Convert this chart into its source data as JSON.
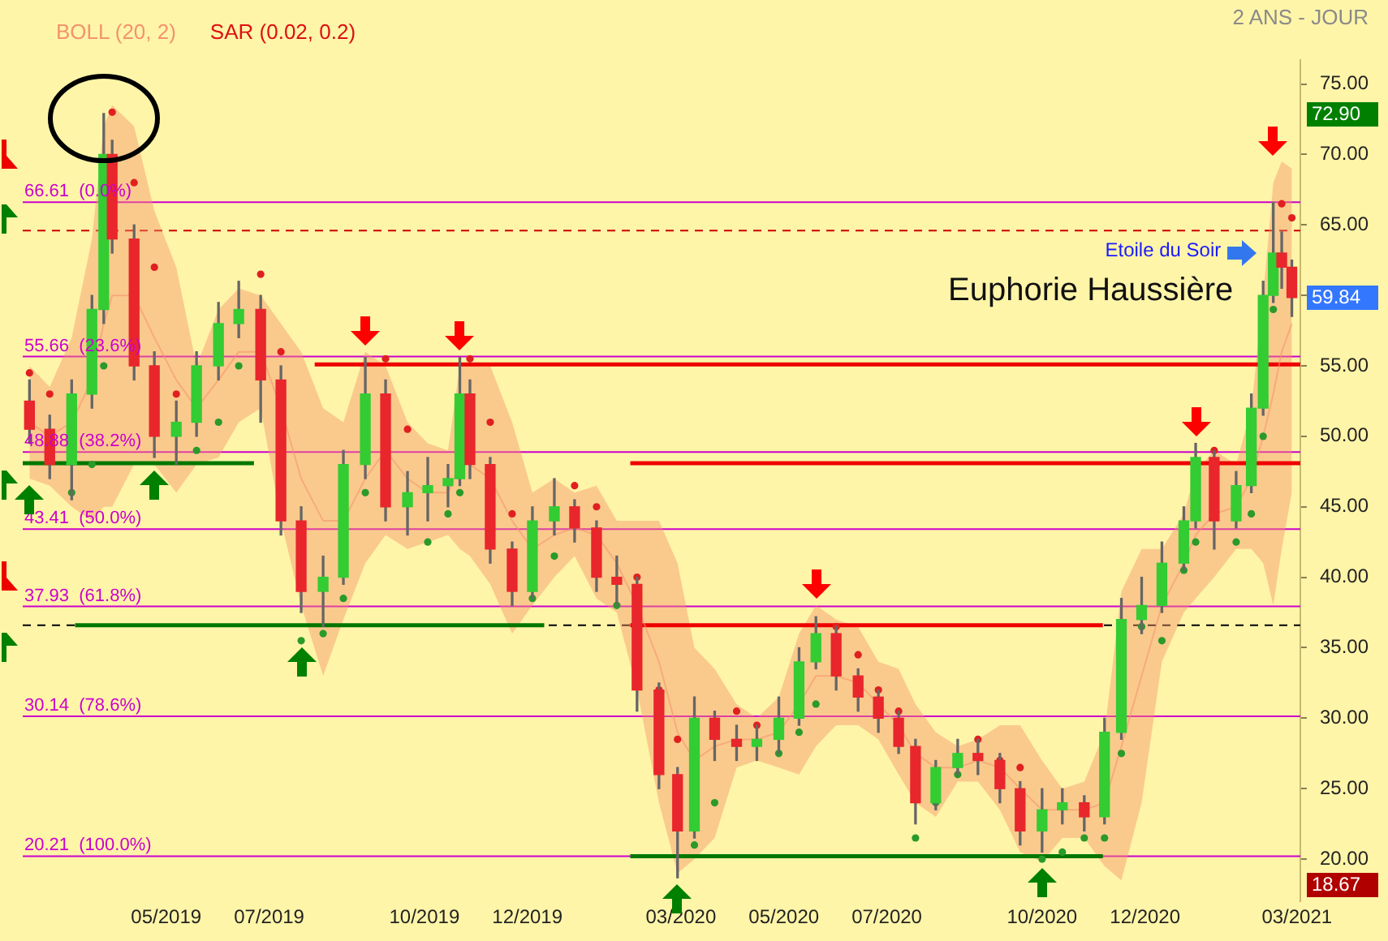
{
  "chart_data": {
    "type": "candlestick",
    "subtitle": "2 ANS - JOUR",
    "legend": "top left",
    "x": [
      "2019-02-09",
      "2019-02-21",
      "2019-03-06",
      "2019-03-18",
      "2019-03-25",
      "2019-03-30",
      "2019-04-12",
      "2019-04-24",
      "2019-05-07",
      "2019-05-19",
      "2019-06-01",
      "2019-06-13",
      "2019-06-26",
      "2019-07-08",
      "2019-07-20",
      "2019-08-02",
      "2019-08-14",
      "2019-08-27",
      "2019-09-08",
      "2019-09-21",
      "2019-10-03",
      "2019-10-15",
      "2019-10-22",
      "2019-10-28",
      "2019-11-09",
      "2019-11-22",
      "2019-12-04",
      "2019-12-17",
      "2019-12-29",
      "2020-01-11",
      "2020-01-23",
      "2020-02-04",
      "2020-02-17",
      "2020-02-28",
      "2020-03-09",
      "2020-03-21",
      "2020-04-03",
      "2020-04-15",
      "2020-04-28",
      "2020-05-10",
      "2020-05-20",
      "2020-06-01",
      "2020-06-14",
      "2020-06-26",
      "2020-07-08",
      "2020-07-18",
      "2020-07-30",
      "2020-08-12",
      "2020-08-24",
      "2020-09-06",
      "2020-09-18",
      "2020-10-01",
      "2020-10-13",
      "2020-10-26",
      "2020-11-07",
      "2020-11-17",
      "2020-11-29",
      "2020-12-11",
      "2020-12-24",
      "2020-12-31",
      "2021-01-11",
      "2021-01-24",
      "2021-02-02",
      "2021-02-09",
      "2021-02-15",
      "2021-02-20",
      "2021-02-26"
    ],
    "ohlc": [
      [
        52.5,
        54,
        49.5,
        50.5
      ],
      [
        50.5,
        51.5,
        47,
        48
      ],
      [
        48,
        54,
        45.5,
        53
      ],
      [
        53,
        60,
        52,
        59
      ],
      [
        59,
        72.9,
        58,
        70
      ],
      [
        70,
        71,
        63,
        64
      ],
      [
        64,
        65,
        54,
        55
      ],
      [
        55,
        56,
        48.5,
        50
      ],
      [
        50,
        52.5,
        48,
        51
      ],
      [
        51,
        56,
        50,
        55
      ],
      [
        55,
        59.5,
        54,
        58
      ],
      [
        58,
        61,
        57,
        59
      ],
      [
        59,
        60,
        51,
        54
      ],
      [
        54,
        55,
        43,
        44
      ],
      [
        44,
        45,
        37.5,
        39
      ],
      [
        39,
        41.5,
        36.5,
        40
      ],
      [
        40,
        49,
        39.5,
        48
      ],
      [
        48,
        55.6,
        47,
        53
      ],
      [
        53,
        54,
        44,
        45
      ],
      [
        45,
        47.5,
        43,
        46
      ],
      [
        46,
        48.5,
        44,
        46.5
      ],
      [
        46.5,
        48,
        45,
        47
      ],
      [
        47,
        55.6,
        46.5,
        53
      ],
      [
        53,
        54,
        47,
        48
      ],
      [
        48,
        48.5,
        41,
        42
      ],
      [
        42,
        42.5,
        38,
        39
      ],
      [
        39,
        45,
        38.5,
        44
      ],
      [
        44,
        47,
        43,
        45
      ],
      [
        45,
        45.5,
        42.5,
        43.5
      ],
      [
        43.5,
        44,
        39,
        40
      ],
      [
        40,
        41.5,
        38,
        39.5
      ],
      [
        39.5,
        40,
        30.5,
        32
      ],
      [
        32,
        32.5,
        25,
        26
      ],
      [
        26,
        26.5,
        18.67,
        22
      ],
      [
        22,
        31.5,
        21.5,
        30
      ],
      [
        30,
        30.5,
        27,
        28.5
      ],
      [
        28.5,
        29.5,
        27,
        28
      ],
      [
        28,
        29.5,
        27,
        28.5
      ],
      [
        28.5,
        31.5,
        27.5,
        30
      ],
      [
        30,
        35,
        29.5,
        34
      ],
      [
        34,
        37.2,
        33.5,
        36
      ],
      [
        36,
        36.5,
        32,
        33
      ],
      [
        33,
        33.5,
        30.5,
        31.5
      ],
      [
        31.5,
        32,
        29,
        30
      ],
      [
        30,
        30.5,
        27.5,
        28
      ],
      [
        28,
        28.5,
        22.5,
        24
      ],
      [
        24,
        27,
        23.5,
        26.5
      ],
      [
        26.5,
        28.5,
        26,
        27.5
      ],
      [
        27.5,
        28.5,
        26,
        27
      ],
      [
        27,
        27.5,
        24,
        25
      ],
      [
        25,
        25.5,
        21,
        22
      ],
      [
        22,
        25,
        20.5,
        23.5
      ],
      [
        23.5,
        25,
        22.5,
        24
      ],
      [
        24,
        24.5,
        22,
        23
      ],
      [
        23,
        30,
        22.5,
        29
      ],
      [
        29,
        38.5,
        28.5,
        37
      ],
      [
        37,
        40,
        36,
        38
      ],
      [
        38,
        42.5,
        37.5,
        41
      ],
      [
        41,
        45,
        40.5,
        44
      ],
      [
        44,
        49.5,
        43.5,
        48.5
      ],
      [
        48.5,
        49,
        42,
        44
      ],
      [
        44,
        47.5,
        43.5,
        46.5
      ],
      [
        46.5,
        53,
        46,
        52
      ],
      [
        52,
        61,
        51.5,
        60
      ],
      [
        60,
        66.61,
        59.5,
        63
      ],
      [
        63,
        64.5,
        60.5,
        62
      ],
      [
        62,
        62.5,
        58.5,
        59.84
      ]
    ],
    "series": [
      {
        "name": "BOLL (20, 2)",
        "type": "line",
        "color": "#f4936c",
        "values": [
          51,
          50,
          51,
          54,
          58,
          60,
          60,
          57,
          54,
          52,
          54,
          56,
          56,
          52,
          47,
          44,
          44,
          47,
          49,
          47,
          46,
          46,
          48,
          48,
          47,
          44,
          42,
          43,
          43.5,
          43,
          41,
          38,
          34,
          29,
          27,
          28,
          28.5,
          28.5,
          29,
          31,
          33,
          33,
          32.5,
          31,
          29.5,
          27.5,
          26.5,
          26.5,
          27,
          26.5,
          25,
          23.5,
          23.5,
          23.5,
          24,
          28,
          33,
          38,
          41,
          43,
          44.5,
          45,
          47,
          50,
          53,
          56,
          58
        ],
        "upper": [
          55,
          53.5,
          57,
          64,
          72,
          73.5,
          72,
          66,
          62,
          55,
          59,
          60.5,
          60,
          58,
          56,
          52,
          51,
          56,
          55,
          51,
          49.5,
          49,
          55,
          55,
          55,
          51,
          46,
          47,
          46,
          46.5,
          44,
          44,
          44,
          41,
          35,
          33.5,
          31,
          30,
          31.5,
          36,
          38,
          37,
          36.5,
          34,
          33.5,
          31,
          29,
          28,
          28.5,
          29.5,
          29.5,
          27,
          25,
          25.5,
          29,
          39,
          42,
          42,
          44.5,
          47.5,
          49,
          48,
          52,
          60,
          68,
          69.5,
          69
        ],
        "lower": [
          47,
          46.5,
          45,
          44,
          45,
          45,
          48,
          48,
          46,
          48,
          48.5,
          51,
          52,
          44,
          38,
          33,
          37,
          41,
          43,
          42,
          42.5,
          43,
          42,
          41.5,
          39.5,
          36,
          38,
          40,
          41.5,
          38.5,
          37.5,
          32,
          24,
          19,
          20,
          21.5,
          26.5,
          27,
          26.5,
          26,
          28,
          29.5,
          29.5,
          28.5,
          26,
          24,
          23,
          25.5,
          25.5,
          23.5,
          20.5,
          19.8,
          21.5,
          21.5,
          19.5,
          18.5,
          24,
          34,
          37.5,
          38.5,
          40,
          42,
          42,
          41,
          38,
          42,
          46
        ]
      },
      {
        "name": "SAR (0.02, 0.2)",
        "type": "scatter",
        "color": "#dd1111",
        "values": [
          54.5,
          53,
          46,
          48,
          55,
          73,
          68,
          62,
          53,
          49,
          51,
          55,
          61.5,
          56,
          35.5,
          36,
          38.5,
          46,
          55.5,
          50.5,
          42.5,
          44.5,
          46,
          55.5,
          51,
          44.5,
          38.5,
          41.5,
          46.5,
          45,
          38,
          40,
          32,
          28.5,
          21,
          24,
          30.5,
          29.5,
          27.5,
          29,
          31,
          36.5,
          34.5,
          32,
          30.5,
          21.5,
          24,
          26,
          28.5,
          27,
          26.5,
          20,
          20.5,
          21.5,
          21.5,
          27.5,
          36.5,
          35.5,
          40.5,
          42.5,
          49,
          42.5,
          44.5,
          50,
          59,
          66.5,
          65.5
        ],
        "colors": [
          "#e02020",
          "#e02020",
          "#2a9a2a",
          "#2a9a2a",
          "#2a9a2a",
          "#e02020",
          "#e02020",
          "#e02020",
          "#e02020",
          "#2a9a2a",
          "#2a9a2a",
          "#2a9a2a",
          "#e02020",
          "#e02020",
          "#2a9a2a",
          "#2a9a2a",
          "#2a9a2a",
          "#2a9a2a",
          "#e02020",
          "#e02020",
          "#2a9a2a",
          "#2a9a2a",
          "#2a9a2a",
          "#e02020",
          "#e02020",
          "#e02020",
          "#2a9a2a",
          "#2a9a2a",
          "#e02020",
          "#e02020",
          "#2a9a2a",
          "#e02020",
          "#e02020",
          "#e02020",
          "#2a9a2a",
          "#2a9a2a",
          "#e02020",
          "#e02020",
          "#2a9a2a",
          "#2a9a2a",
          "#2a9a2a",
          "#e02020",
          "#e02020",
          "#e02020",
          "#e02020",
          "#2a9a2a",
          "#2a9a2a",
          "#2a9a2a",
          "#e02020",
          "#e02020",
          "#e02020",
          "#2a9a2a",
          "#2a9a2a",
          "#2a9a2a",
          "#2a9a2a",
          "#2a9a2a",
          "#2a9a2a",
          "#2a9a2a",
          "#2a9a2a",
          "#2a9a2a",
          "#e02020",
          "#2a9a2a",
          "#2a9a2a",
          "#2a9a2a",
          "#2a9a2a",
          "#e02020",
          "#e02020"
        ]
      },
      {
        "type": "line",
        "color": "#ee0000",
        "x": [
          "2019-07-28",
          "2021-03-03"
        ],
        "values": [
          55.1,
          55.1
        ]
      },
      {
        "type": "line",
        "color": "#ee0000",
        "x": [
          "2020-01-31",
          "2021-03-03"
        ],
        "values": [
          48.1,
          48.1
        ]
      },
      {
        "type": "line",
        "color": "#007700",
        "x": [
          "2019-02-05",
          "2019-06-22"
        ],
        "values": [
          48.1,
          48.1
        ]
      },
      {
        "type": "line",
        "color": "#007700",
        "x": [
          "2019-03-08",
          "2019-12-11"
        ],
        "values": [
          36.6,
          36.6
        ]
      },
      {
        "type": "line",
        "color": "#ee0000",
        "x": [
          "2020-01-31",
          "2020-11-06"
        ],
        "values": [
          36.6,
          36.6
        ]
      },
      {
        "type": "line",
        "color": "#007700",
        "x": [
          "2020-01-31",
          "2020-11-06"
        ],
        "values": [
          20.2,
          20.2
        ]
      }
    ],
    "ref_lines": [
      {
        "axis": "y",
        "value": 66.61,
        "label": "66.61  (0.0%)",
        "color": "#cc00cc"
      },
      {
        "axis": "y",
        "value": 55.66,
        "label": "55.66  (23.6%)",
        "color": "#cc00cc"
      },
      {
        "axis": "y",
        "value": 48.88,
        "label": "48.88  (38.2%)",
        "color": "#cc00cc"
      },
      {
        "axis": "y",
        "value": 43.41,
        "label": "43.41  (50.0%)",
        "color": "#cc00cc"
      },
      {
        "axis": "y",
        "value": 37.93,
        "label": "37.93  (61.8%)",
        "color": "#cc00cc"
      },
      {
        "axis": "y",
        "value": 30.14,
        "label": "30.14  (78.6%)",
        "color": "#cc00cc"
      },
      {
        "axis": "y",
        "value": 20.21,
        "label": "20.21  (100.0%)",
        "color": "#cc00cc"
      },
      {
        "axis": "y",
        "value": 64.6,
        "color": "#cc0000",
        "line_style": "dashed"
      },
      {
        "axis": "y",
        "value": 36.6,
        "color": "#000000",
        "line_style": "dashed"
      }
    ],
    "annotations": [
      "Euphorie Haussière",
      {
        "text": "Etoile du Soir",
        "x": "2021-02-09",
        "y": 63
      },
      "72.90",
      "59.84",
      "18.67"
    ],
    "xlim": [
      "2019-02-05",
      "2021-03-03"
    ],
    "xticks": [
      {
        "value": "2019-05-01",
        "label": "05/2019"
      },
      {
        "value": "2019-07-01",
        "label": "07/2019"
      },
      {
        "value": "2019-10-01",
        "label": "10/2019"
      },
      {
        "value": "2019-12-01",
        "label": "12/2019"
      },
      {
        "value": "2020-03-01",
        "label": "03/2020"
      },
      {
        "value": "2020-05-01",
        "label": "05/2020"
      },
      {
        "value": "2020-07-01",
        "label": "07/2020"
      },
      {
        "value": "2020-10-01",
        "label": "10/2020"
      },
      {
        "value": "2020-12-01",
        "label": "12/2020"
      },
      {
        "value": "2021-03-01",
        "label": "03/2021"
      }
    ],
    "ylim": [
      17,
      76.7
    ],
    "yticks": [
      {
        "value": 20,
        "label": "20.00"
      },
      {
        "value": 25,
        "label": "25.00"
      },
      {
        "value": 30,
        "label": "30.00"
      },
      {
        "value": 35,
        "label": "35.00"
      },
      {
        "value": 40,
        "label": "40.00"
      },
      {
        "value": 45,
        "label": "45.00"
      },
      {
        "value": 50,
        "label": "50.00"
      },
      {
        "value": 55,
        "label": "55.00"
      },
      {
        "value": 60,
        "label": null
      },
      {
        "value": 65,
        "label": "65.00"
      },
      {
        "value": 70,
        "label": "70.00"
      },
      {
        "value": 75,
        "label": "75.00"
      }
    ]
  }
}
